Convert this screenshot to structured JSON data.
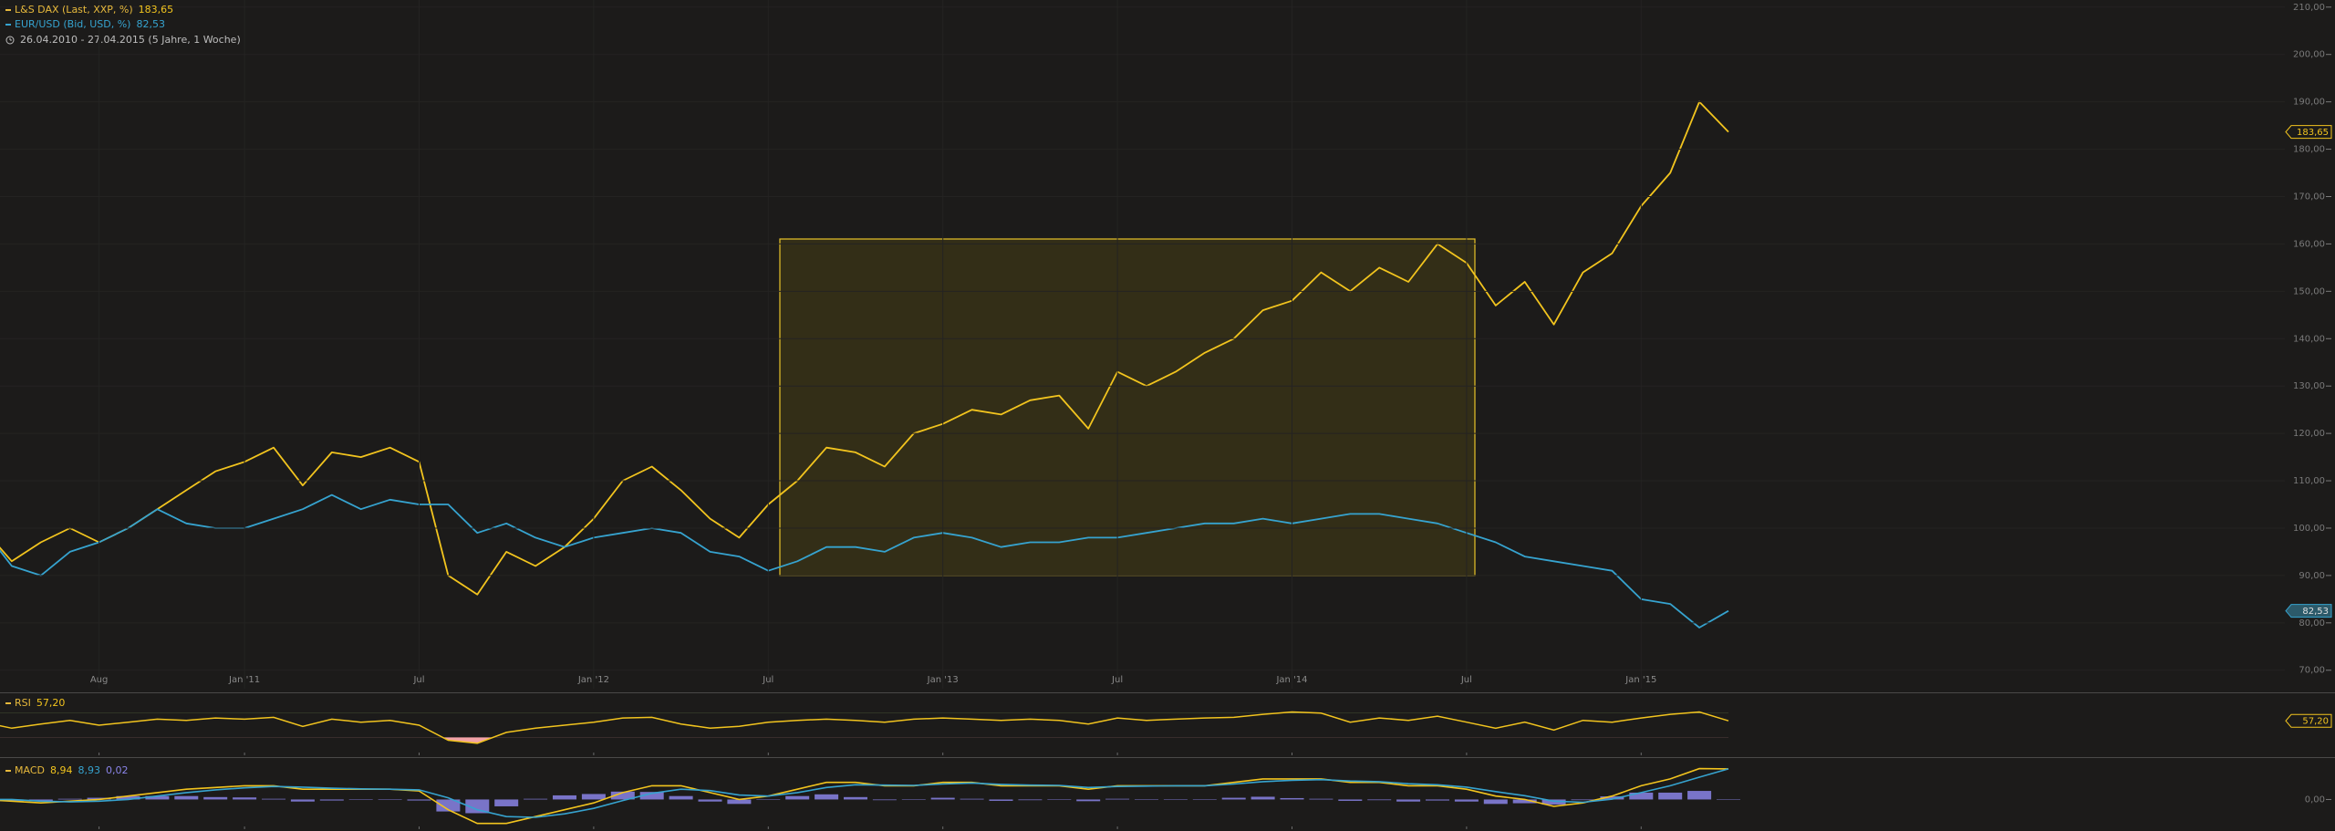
{
  "chart_data": [
    {
      "type": "line",
      "subtitle": "26.04.2010 - 27.04.2015 (5 Jahre, 1 Woche)",
      "categories": [
        null,
        null,
        null,
        null,
        "Aug",
        null,
        null,
        null,
        null,
        "Jan '11",
        null,
        null,
        null,
        null,
        null,
        "Jul",
        null,
        null,
        null,
        null,
        null,
        "Jan '12",
        null,
        null,
        null,
        null,
        null,
        "Jul",
        null,
        null,
        null,
        null,
        null,
        "Jan '13",
        null,
        null,
        null,
        null,
        null,
        "Jul",
        null,
        null,
        null,
        null,
        null,
        "Jan '14",
        null,
        null,
        null,
        null,
        null,
        "Jul",
        null,
        null,
        null,
        null,
        null,
        "Jan '15",
        null,
        null,
        null
      ],
      "series": [
        {
          "name": "L&S DAX (Last, XXP, %)",
          "color": "#f2c41e",
          "values": [
            100,
            93,
            97,
            100,
            97,
            100,
            104,
            108,
            112,
            114,
            117,
            109,
            116,
            115,
            117,
            114,
            90,
            86,
            95,
            92,
            96,
            102,
            110,
            113,
            108,
            102,
            98,
            105,
            110,
            117,
            116,
            113,
            120,
            122,
            125,
            124,
            127,
            128,
            121,
            133,
            130,
            133,
            137,
            140,
            146,
            148,
            154,
            150,
            155,
            152,
            160,
            156,
            147,
            152,
            143,
            154,
            158,
            168,
            175,
            190,
            183.65
          ],
          "value_labels": [
            null,
            null,
            null,
            null,
            null,
            null,
            null,
            null,
            null,
            null,
            null,
            null,
            null,
            null,
            null,
            null,
            null,
            null,
            null,
            null,
            null,
            null,
            null,
            null,
            null,
            null,
            null,
            null,
            null,
            null,
            null,
            null,
            null,
            null,
            null,
            null,
            null,
            null,
            null,
            null,
            null,
            null,
            null,
            null,
            null,
            null,
            null,
            null,
            null,
            null,
            null,
            null,
            null,
            null,
            null,
            null,
            null,
            null,
            null,
            null,
            "183,65"
          ]
        },
        {
          "name": "EUR/USD (Bid, USD, %)",
          "color": "#36a3cf",
          "values": [
            100,
            92,
            90,
            95,
            97,
            100,
            104,
            101,
            100,
            100,
            102,
            104,
            107,
            104,
            106,
            105,
            105,
            99,
            101,
            98,
            96,
            98,
            99,
            100,
            99,
            95,
            94,
            91,
            93,
            96,
            96,
            95,
            98,
            99,
            98,
            96,
            97,
            97,
            98,
            98,
            99,
            100,
            101,
            101,
            102,
            101,
            102,
            103,
            103,
            102,
            101,
            99,
            97,
            94,
            93,
            92,
            91,
            85,
            84,
            79,
            82.53
          ],
          "value_labels": [
            null,
            null,
            null,
            null,
            null,
            null,
            null,
            null,
            null,
            null,
            null,
            null,
            null,
            null,
            null,
            null,
            null,
            null,
            null,
            null,
            null,
            null,
            null,
            null,
            null,
            null,
            null,
            null,
            null,
            null,
            null,
            null,
            null,
            null,
            null,
            null,
            null,
            null,
            null,
            null,
            null,
            null,
            null,
            null,
            null,
            null,
            null,
            null,
            null,
            null,
            null,
            null,
            null,
            null,
            null,
            null,
            null,
            null,
            null,
            null,
            "82,53"
          ]
        }
      ],
      "ylim": [
        66.1,
        211.5
      ],
      "yticks": [
        {
          "value": 210,
          "label": "210,00"
        },
        {
          "value": 200,
          "label": "200,00"
        },
        {
          "value": 190,
          "label": "190,00"
        },
        {
          "value": 180,
          "label": "180,00"
        },
        {
          "value": 170,
          "label": "170,00"
        },
        {
          "value": 160,
          "label": "160,00"
        },
        {
          "value": 150,
          "label": "150,00"
        },
        {
          "value": 140,
          "label": "140,00"
        },
        {
          "value": 130,
          "label": "130,00"
        },
        {
          "value": 120,
          "label": "120,00"
        },
        {
          "value": 110,
          "label": "110,00"
        },
        {
          "value": 100,
          "label": "100,00"
        },
        {
          "value": 90,
          "label": "90,00"
        },
        {
          "value": 80,
          "label": "80,00"
        },
        {
          "value": 70,
          "label": "70,00"
        }
      ],
      "grid": true
    },
    {
      "type": "rsi",
      "series": [
        {
          "name": "RSI",
          "color": "#f2c41e",
          "values": [
            55,
            45,
            52,
            58,
            50,
            55,
            60,
            58,
            62,
            60,
            63,
            48,
            60,
            55,
            58,
            50,
            25,
            20,
            38,
            45,
            50,
            55,
            62,
            63,
            52,
            45,
            48,
            55,
            58,
            60,
            58,
            55,
            60,
            62,
            60,
            58,
            60,
            58,
            52,
            62,
            58,
            60,
            62,
            63,
            68,
            72,
            70,
            55,
            62,
            58,
            65,
            55,
            45,
            55,
            42,
            58,
            55,
            62,
            68,
            72,
            57.2
          ],
          "value_labels": [
            null,
            null,
            null,
            null,
            null,
            null,
            null,
            null,
            null,
            null,
            null,
            null,
            null,
            null,
            null,
            null,
            null,
            null,
            null,
            null,
            null,
            null,
            null,
            null,
            null,
            null,
            null,
            null,
            null,
            null,
            null,
            null,
            null,
            null,
            null,
            null,
            null,
            null,
            null,
            null,
            null,
            null,
            null,
            null,
            null,
            null,
            null,
            null,
            null,
            null,
            null,
            null,
            null,
            null,
            null,
            null,
            null,
            null,
            null,
            null,
            "57,20"
          ]
        }
      ],
      "ylim": [
        0,
        100
      ],
      "overbought": 70,
      "oversold": 30,
      "overbought_color": "#b9e27c",
      "oversold_color": "#f2a3a8"
    },
    {
      "type": "macd",
      "series": [
        {
          "name": "MACD",
          "color": "#f2c41e",
          "values": [
            0,
            -0.5,
            -1,
            -0.5,
            0,
            1,
            2,
            3,
            3.5,
            4,
            4,
            3,
            3,
            3,
            3,
            2.5,
            -3,
            -7,
            -7,
            -5,
            -3,
            -1,
            2,
            4,
            4,
            2,
            0,
            1,
            3,
            5,
            5,
            4,
            4,
            5,
            5,
            4,
            4,
            4,
            3,
            4,
            4,
            4,
            4,
            5,
            6,
            6,
            6,
            5,
            5,
            4,
            4,
            3,
            1,
            0,
            -2,
            -1,
            1,
            4,
            6,
            9,
            8.94
          ],
          "value_labels": [
            null,
            null,
            null,
            null,
            null,
            null,
            null,
            null,
            null,
            null,
            null,
            null,
            null,
            null,
            null,
            null,
            null,
            null,
            null,
            null,
            null,
            null,
            null,
            null,
            null,
            null,
            null,
            null,
            null,
            null,
            null,
            null,
            null,
            null,
            null,
            null,
            null,
            null,
            null,
            null,
            null,
            null,
            null,
            null,
            null,
            null,
            null,
            null,
            null,
            null,
            null,
            null,
            null,
            null,
            null,
            null,
            null,
            null,
            null,
            null,
            "8,94"
          ]
        },
        {
          "color": "#36a3cf",
          "values": [
            0,
            0,
            -0.5,
            -0.7,
            -0.5,
            0,
            1,
            2,
            2.8,
            3.4,
            3.8,
            3.6,
            3.3,
            3.1,
            3,
            2.8,
            0.5,
            -3,
            -5,
            -5.2,
            -4.2,
            -2.6,
            -0.3,
            1.8,
            3,
            2.6,
            1.3,
            1,
            2,
            3.5,
            4.3,
            4.2,
            4.1,
            4.5,
            4.8,
            4.4,
            4.2,
            4.1,
            3.5,
            3.8,
            3.9,
            4,
            4,
            4.5,
            5.2,
            5.6,
            5.8,
            5.4,
            5.2,
            4.6,
            4.3,
            3.6,
            2.3,
            1.1,
            -0.5,
            -0.8,
            0.1,
            2,
            4,
            6.5,
            8.93
          ],
          "value_labels": [
            null,
            null,
            null,
            null,
            null,
            null,
            null,
            null,
            null,
            null,
            null,
            null,
            null,
            null,
            null,
            null,
            null,
            null,
            null,
            null,
            null,
            null,
            null,
            null,
            null,
            null,
            null,
            null,
            null,
            null,
            null,
            null,
            null,
            null,
            null,
            null,
            null,
            null,
            null,
            null,
            null,
            null,
            null,
            null,
            null,
            null,
            null,
            null,
            null,
            null,
            null,
            null,
            null,
            null,
            null,
            null,
            null,
            null,
            null,
            null,
            "8,93"
          ]
        },
        {
          "color": "#8a84e8",
          "kind": "histogram",
          "values": [
            0,
            -0.5,
            -0.5,
            0.2,
            0.5,
            1,
            1,
            1,
            0.7,
            0.6,
            0.2,
            -0.6,
            -0.3,
            -0.1,
            0,
            -0.3,
            -3.5,
            -4,
            -2,
            0.2,
            1.2,
            1.6,
            2.3,
            2.2,
            1,
            -0.6,
            -1.3,
            0,
            1,
            1.5,
            0.7,
            -0.2,
            -0.1,
            0.5,
            0.2,
            -0.4,
            -0.2,
            -0.1,
            -0.5,
            0.2,
            0.1,
            0,
            0,
            0.5,
            0.8,
            0.4,
            0.2,
            -0.4,
            -0.2,
            -0.6,
            -0.3,
            -0.6,
            -1.3,
            -1.1,
            -1.5,
            -0.2,
            0.9,
            2,
            2,
            2.5,
            0.02
          ],
          "value_labels": [
            null,
            null,
            null,
            null,
            null,
            null,
            null,
            null,
            null,
            null,
            null,
            null,
            null,
            null,
            null,
            null,
            null,
            null,
            null,
            null,
            null,
            null,
            null,
            null,
            null,
            null,
            null,
            null,
            null,
            null,
            null,
            null,
            null,
            null,
            null,
            null,
            null,
            null,
            null,
            null,
            null,
            null,
            null,
            null,
            null,
            null,
            null,
            null,
            null,
            null,
            null,
            null,
            null,
            null,
            null,
            null,
            null,
            null,
            null,
            null,
            "0,02"
          ]
        }
      ],
      "ylim": [
        -9.2,
        12.1
      ],
      "yticks": [
        {
          "value": 0,
          "label": "0,00"
        }
      ]
    }
  ]
}
